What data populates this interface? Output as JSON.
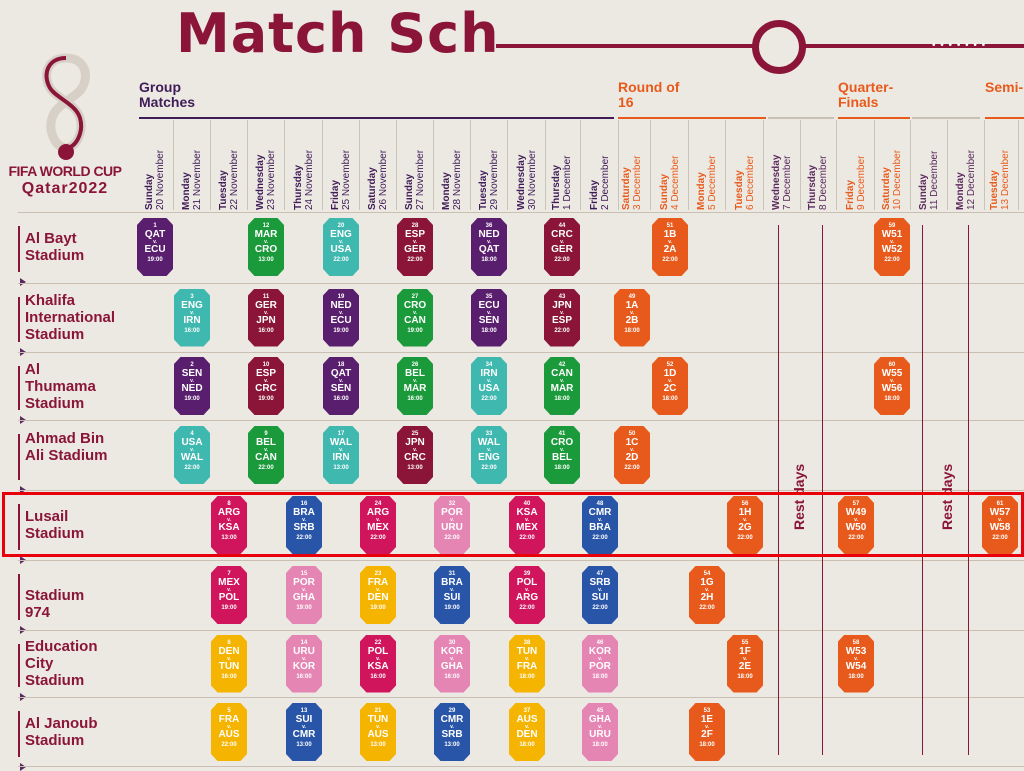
{
  "title": "Match Sch",
  "brand": {
    "line1": "FIFA WORLD CUP",
    "line2": "Qatar2022"
  },
  "sections": [
    {
      "label": "Group Matches",
      "color": "#3f1c58"
    },
    {
      "label": "Round of 16",
      "color": "#e85a1c"
    },
    {
      "label": "Quarter-Finals",
      "color": "#e85a1c"
    },
    {
      "label": "Semi-Final",
      "color": "#e85a1c"
    }
  ],
  "dates": [
    {
      "day": "Sunday",
      "date": "20 November",
      "color": "#3f1c58"
    },
    {
      "day": "Monday",
      "date": "21 November",
      "color": "#3f1c58"
    },
    {
      "day": "Tuesday",
      "date": "22 November",
      "color": "#3f1c58"
    },
    {
      "day": "Wednesday",
      "date": "23 November",
      "color": "#3f1c58"
    },
    {
      "day": "Thursday",
      "date": "24 November",
      "color": "#3f1c58"
    },
    {
      "day": "Friday",
      "date": "25 November",
      "color": "#3f1c58"
    },
    {
      "day": "Saturday",
      "date": "26 November",
      "color": "#3f1c58"
    },
    {
      "day": "Sunday",
      "date": "27 November",
      "color": "#3f1c58"
    },
    {
      "day": "Monday",
      "date": "28 November",
      "color": "#3f1c58"
    },
    {
      "day": "Tuesday",
      "date": "29 November",
      "color": "#3f1c58"
    },
    {
      "day": "Wednesday",
      "date": "30 November",
      "color": "#3f1c58"
    },
    {
      "day": "Thursday",
      "date": "1 December",
      "color": "#3f1c58"
    },
    {
      "day": "Friday",
      "date": "2 December",
      "color": "#3f1c58"
    },
    {
      "day": "Saturday",
      "date": "3 December",
      "color": "#e85a1c"
    },
    {
      "day": "Sunday",
      "date": "4 December",
      "color": "#e85a1c"
    },
    {
      "day": "Monday",
      "date": "5 December",
      "color": "#e85a1c"
    },
    {
      "day": "Tuesday",
      "date": "6 December",
      "color": "#e85a1c"
    },
    {
      "day": "Wednesday",
      "date": "7 December",
      "color": "#5a2a5e"
    },
    {
      "day": "Thursday",
      "date": "8 December",
      "color": "#5a2a5e"
    },
    {
      "day": "Friday",
      "date": "9 December",
      "color": "#e85a1c"
    },
    {
      "day": "Saturday",
      "date": "10 December",
      "color": "#e85a1c"
    },
    {
      "day": "Sunday",
      "date": "11 December",
      "color": "#5a2a5e"
    },
    {
      "day": "Monday",
      "date": "12 December",
      "color": "#5a2a5e"
    },
    {
      "day": "Tuesday",
      "date": "13 December",
      "color": "#e85a1c"
    }
  ],
  "stadiums": [
    "Al Bayt Stadium",
    "Khalifa International Stadium",
    "Al Thumama Stadium",
    "Ahmad Bin Ali Stadium",
    "Lusail Stadium",
    "Stadium 974",
    "Education City Stadium",
    "Al Janoub Stadium"
  ],
  "rest_label": "Rest days",
  "colors": {
    "maroon": "#8a1538",
    "purple": "#5a1e6e",
    "green": "#1a9a3a",
    "teal": "#3fb8af",
    "red": "#d0155c",
    "pink": "#e585b4",
    "blue": "#2855a8",
    "yellow": "#f5b400",
    "orange": "#e85a1c",
    "highlight": "#e8000b"
  },
  "matches": [
    {
      "num": "1",
      "home": "QAT",
      "away": "ECU",
      "time": "19:00",
      "stadium": 0,
      "day": 0,
      "color": "purple"
    },
    {
      "num": "12",
      "home": "MAR",
      "away": "CRO",
      "time": "13:00",
      "stadium": 0,
      "day": 3,
      "color": "green"
    },
    {
      "num": "20",
      "home": "ENG",
      "away": "USA",
      "time": "22:00",
      "stadium": 0,
      "day": 5,
      "color": "teal"
    },
    {
      "num": "28",
      "home": "ESP",
      "away": "GER",
      "time": "22:00",
      "stadium": 0,
      "day": 7,
      "color": "maroon"
    },
    {
      "num": "36",
      "home": "NED",
      "away": "QAT",
      "time": "18:00",
      "stadium": 0,
      "day": 9,
      "color": "purple"
    },
    {
      "num": "44",
      "home": "CRC",
      "away": "GER",
      "time": "22:00",
      "stadium": 0,
      "day": 11,
      "color": "maroon"
    },
    {
      "num": "51",
      "home": "1B",
      "away": "2A",
      "time": "22:00",
      "stadium": 0,
      "day": 14,
      "color": "orange"
    },
    {
      "num": "59",
      "home": "W51",
      "away": "W52",
      "time": "22:00",
      "stadium": 0,
      "day": 20,
      "color": "orange"
    },
    {
      "num": "3",
      "home": "ENG",
      "away": "IRN",
      "time": "16:00",
      "stadium": 1,
      "day": 1,
      "color": "teal"
    },
    {
      "num": "11",
      "home": "GER",
      "away": "JPN",
      "time": "16:00",
      "stadium": 1,
      "day": 3,
      "color": "maroon"
    },
    {
      "num": "19",
      "home": "NED",
      "away": "ECU",
      "time": "19:00",
      "stadium": 1,
      "day": 5,
      "color": "purple"
    },
    {
      "num": "27",
      "home": "CRO",
      "away": "CAN",
      "time": "19:00",
      "stadium": 1,
      "day": 7,
      "color": "green"
    },
    {
      "num": "35",
      "home": "ECU",
      "away": "SEN",
      "time": "18:00",
      "stadium": 1,
      "day": 9,
      "color": "purple"
    },
    {
      "num": "43",
      "home": "JPN",
      "away": "ESP",
      "time": "22:00",
      "stadium": 1,
      "day": 11,
      "color": "maroon"
    },
    {
      "num": "49",
      "home": "1A",
      "away": "2B",
      "time": "18:00",
      "stadium": 1,
      "day": 13,
      "color": "orange"
    },
    {
      "num": "2",
      "home": "SEN",
      "away": "NED",
      "time": "19:00",
      "stadium": 2,
      "day": 1,
      "color": "purple"
    },
    {
      "num": "10",
      "home": "ESP",
      "away": "CRC",
      "time": "19:00",
      "stadium": 2,
      "day": 3,
      "color": "maroon"
    },
    {
      "num": "18",
      "home": "QAT",
      "away": "SEN",
      "time": "16:00",
      "stadium": 2,
      "day": 5,
      "color": "purple"
    },
    {
      "num": "26",
      "home": "BEL",
      "away": "MAR",
      "time": "16:00",
      "stadium": 2,
      "day": 7,
      "color": "green"
    },
    {
      "num": "34",
      "home": "IRN",
      "away": "USA",
      "time": "22:00",
      "stadium": 2,
      "day": 9,
      "color": "teal"
    },
    {
      "num": "42",
      "home": "CAN",
      "away": "MAR",
      "time": "18:00",
      "stadium": 2,
      "day": 11,
      "color": "green"
    },
    {
      "num": "52",
      "home": "1D",
      "away": "2C",
      "time": "18:00",
      "stadium": 2,
      "day": 14,
      "color": "orange"
    },
    {
      "num": "60",
      "home": "W55",
      "away": "W56",
      "time": "18:00",
      "stadium": 2,
      "day": 20,
      "color": "orange"
    },
    {
      "num": "4",
      "home": "USA",
      "away": "WAL",
      "time": "22:00",
      "stadium": 3,
      "day": 1,
      "color": "teal"
    },
    {
      "num": "9",
      "home": "BEL",
      "away": "CAN",
      "time": "22:00",
      "stadium": 3,
      "day": 3,
      "color": "green"
    },
    {
      "num": "17",
      "home": "WAL",
      "away": "IRN",
      "time": "13:00",
      "stadium": 3,
      "day": 5,
      "color": "teal"
    },
    {
      "num": "25",
      "home": "JPN",
      "away": "CRC",
      "time": "13:00",
      "stadium": 3,
      "day": 7,
      "color": "maroon"
    },
    {
      "num": "33",
      "home": "WAL",
      "away": "ENG",
      "time": "22:00",
      "stadium": 3,
      "day": 9,
      "color": "teal"
    },
    {
      "num": "41",
      "home": "CRO",
      "away": "BEL",
      "time": "18:00",
      "stadium": 3,
      "day": 11,
      "color": "green"
    },
    {
      "num": "50",
      "home": "1C",
      "away": "2D",
      "time": "22:00",
      "stadium": 3,
      "day": 13,
      "color": "orange"
    },
    {
      "num": "8",
      "home": "ARG",
      "away": "KSA",
      "time": "13:00",
      "stadium": 4,
      "day": 2,
      "color": "red"
    },
    {
      "num": "16",
      "home": "BRA",
      "away": "SRB",
      "time": "22:00",
      "stadium": 4,
      "day": 4,
      "color": "blue"
    },
    {
      "num": "24",
      "home": "ARG",
      "away": "MEX",
      "time": "22:00",
      "stadium": 4,
      "day": 6,
      "color": "red"
    },
    {
      "num": "32",
      "home": "POR",
      "away": "URU",
      "time": "22:00",
      "stadium": 4,
      "day": 8,
      "color": "pink"
    },
    {
      "num": "40",
      "home": "KSA",
      "away": "MEX",
      "time": "22:00",
      "stadium": 4,
      "day": 10,
      "color": "red"
    },
    {
      "num": "48",
      "home": "CMR",
      "away": "BRA",
      "time": "22:00",
      "stadium": 4,
      "day": 12,
      "color": "blue"
    },
    {
      "num": "56",
      "home": "1H",
      "away": "2G",
      "time": "22:00",
      "stadium": 4,
      "day": 16,
      "color": "orange"
    },
    {
      "num": "57",
      "home": "W49",
      "away": "W50",
      "time": "22:00",
      "stadium": 4,
      "day": 19,
      "color": "orange"
    },
    {
      "num": "61",
      "home": "W57",
      "away": "W58",
      "time": "22:00",
      "stadium": 4,
      "day": 23,
      "color": "orange"
    },
    {
      "num": "7",
      "home": "MEX",
      "away": "POL",
      "time": "19:00",
      "stadium": 5,
      "day": 2,
      "color": "red"
    },
    {
      "num": "15",
      "home": "POR",
      "away": "GHA",
      "time": "19:00",
      "stadium": 5,
      "day": 4,
      "color": "pink"
    },
    {
      "num": "23",
      "home": "FRA",
      "away": "DEN",
      "time": "19:00",
      "stadium": 5,
      "day": 6,
      "color": "yellow"
    },
    {
      "num": "31",
      "home": "BRA",
      "away": "SUI",
      "time": "19:00",
      "stadium": 5,
      "day": 8,
      "color": "blue"
    },
    {
      "num": "39",
      "home": "POL",
      "away": "ARG",
      "time": "22:00",
      "stadium": 5,
      "day": 10,
      "color": "red"
    },
    {
      "num": "47",
      "home": "SRB",
      "away": "SUI",
      "time": "22:00",
      "stadium": 5,
      "day": 12,
      "color": "blue"
    },
    {
      "num": "54",
      "home": "1G",
      "away": "2H",
      "time": "22:00",
      "stadium": 5,
      "day": 15,
      "color": "orange"
    },
    {
      "num": "6",
      "home": "DEN",
      "away": "TUN",
      "time": "16:00",
      "stadium": 6,
      "day": 2,
      "color": "yellow"
    },
    {
      "num": "14",
      "home": "URU",
      "away": "KOR",
      "time": "16:00",
      "stadium": 6,
      "day": 4,
      "color": "pink"
    },
    {
      "num": "22",
      "home": "POL",
      "away": "KSA",
      "time": "16:00",
      "stadium": 6,
      "day": 6,
      "color": "red"
    },
    {
      "num": "30",
      "home": "KOR",
      "away": "GHA",
      "time": "16:00",
      "stadium": 6,
      "day": 8,
      "color": "pink"
    },
    {
      "num": "38",
      "home": "TUN",
      "away": "FRA",
      "time": "18:00",
      "stadium": 6,
      "day": 10,
      "color": "yellow"
    },
    {
      "num": "46",
      "home": "KOR",
      "away": "POR",
      "time": "18:00",
      "stadium": 6,
      "day": 12,
      "color": "pink"
    },
    {
      "num": "55",
      "home": "1F",
      "away": "2E",
      "time": "18:00",
      "stadium": 6,
      "day": 16,
      "color": "orange"
    },
    {
      "num": "58",
      "home": "W53",
      "away": "W54",
      "time": "18:00",
      "stadium": 6,
      "day": 19,
      "color": "orange"
    },
    {
      "num": "5",
      "home": "FRA",
      "away": "AUS",
      "time": "22:00",
      "stadium": 7,
      "day": 2,
      "color": "yellow"
    },
    {
      "num": "13",
      "home": "SUI",
      "away": "CMR",
      "time": "13:00",
      "stadium": 7,
      "day": 4,
      "color": "blue"
    },
    {
      "num": "21",
      "home": "TUN",
      "away": "AUS",
      "time": "13:00",
      "stadium": 7,
      "day": 6,
      "color": "yellow"
    },
    {
      "num": "29",
      "home": "CMR",
      "away": "SRB",
      "time": "13:00",
      "stadium": 7,
      "day": 8,
      "color": "blue"
    },
    {
      "num": "37",
      "home": "AUS",
      "away": "DEN",
      "time": "18:00",
      "stadium": 7,
      "day": 10,
      "color": "yellow"
    },
    {
      "num": "45",
      "home": "GHA",
      "away": "URU",
      "time": "18:00",
      "stadium": 7,
      "day": 12,
      "color": "pink"
    },
    {
      "num": "53",
      "home": "1E",
      "away": "2F",
      "time": "18:00",
      "stadium": 7,
      "day": 15,
      "color": "orange"
    }
  ]
}
